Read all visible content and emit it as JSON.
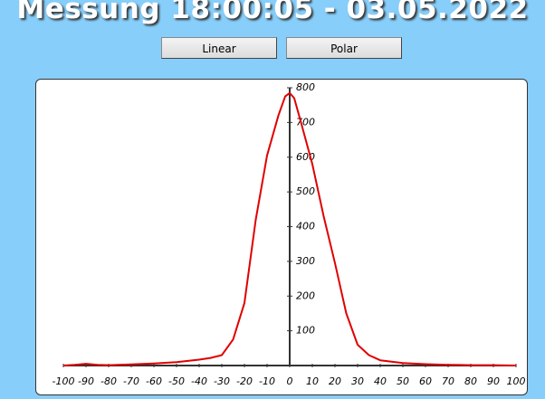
{
  "header": {
    "title": "Messung 18:00:05 - 03.05.2022"
  },
  "buttons": [
    "Linear",
    "Polar"
  ],
  "chart_data": {
    "type": "line",
    "x": [
      -100,
      -95,
      -90,
      -85,
      -80,
      -70,
      -60,
      -50,
      -40,
      -35,
      -30,
      -25,
      -20,
      -15,
      -10,
      -5,
      -2,
      0,
      2,
      5,
      10,
      15,
      20,
      25,
      30,
      35,
      40,
      50,
      60,
      70,
      80,
      90,
      100
    ],
    "values": [
      0,
      2,
      5,
      2,
      1,
      3,
      6,
      10,
      17,
      22,
      30,
      75,
      180,
      420,
      605,
      720,
      775,
      785,
      770,
      700,
      580,
      430,
      295,
      150,
      60,
      30,
      15,
      7,
      4,
      2,
      1,
      1,
      0
    ],
    "color": "#e00000",
    "xlim": [
      -100,
      100
    ],
    "xticks": [
      -100,
      -90,
      -80,
      -70,
      -60,
      -50,
      -40,
      -30,
      -20,
      -10,
      0,
      10,
      20,
      30,
      40,
      50,
      60,
      70,
      80,
      90,
      100
    ],
    "ylim": [
      0,
      800
    ],
    "yticks": [
      100,
      200,
      300,
      400,
      500,
      600,
      700,
      800
    ]
  }
}
